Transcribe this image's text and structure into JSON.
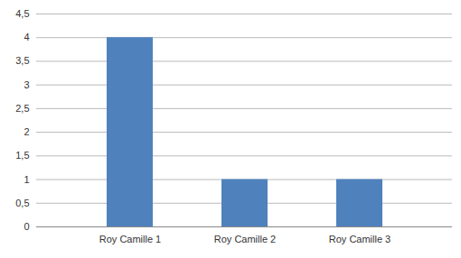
{
  "chart_data": {
    "type": "bar",
    "categories": [
      "Roy Camille 1",
      "Roy Camille 2",
      "Roy Camille 3"
    ],
    "values": [
      4,
      1,
      1
    ],
    "color": "#4f81bd",
    "ylim": [
      0,
      4.5
    ],
    "yticks": [
      0,
      {
        "value": 0.5,
        "label": "0,5"
      },
      1,
      {
        "value": 1.5,
        "label": "1,5"
      },
      2,
      {
        "value": 2.5,
        "label": "2,5"
      },
      3,
      {
        "value": 3.5,
        "label": "3,5"
      },
      4,
      {
        "value": 4.5,
        "label": "4,5"
      }
    ],
    "grid": true
  }
}
